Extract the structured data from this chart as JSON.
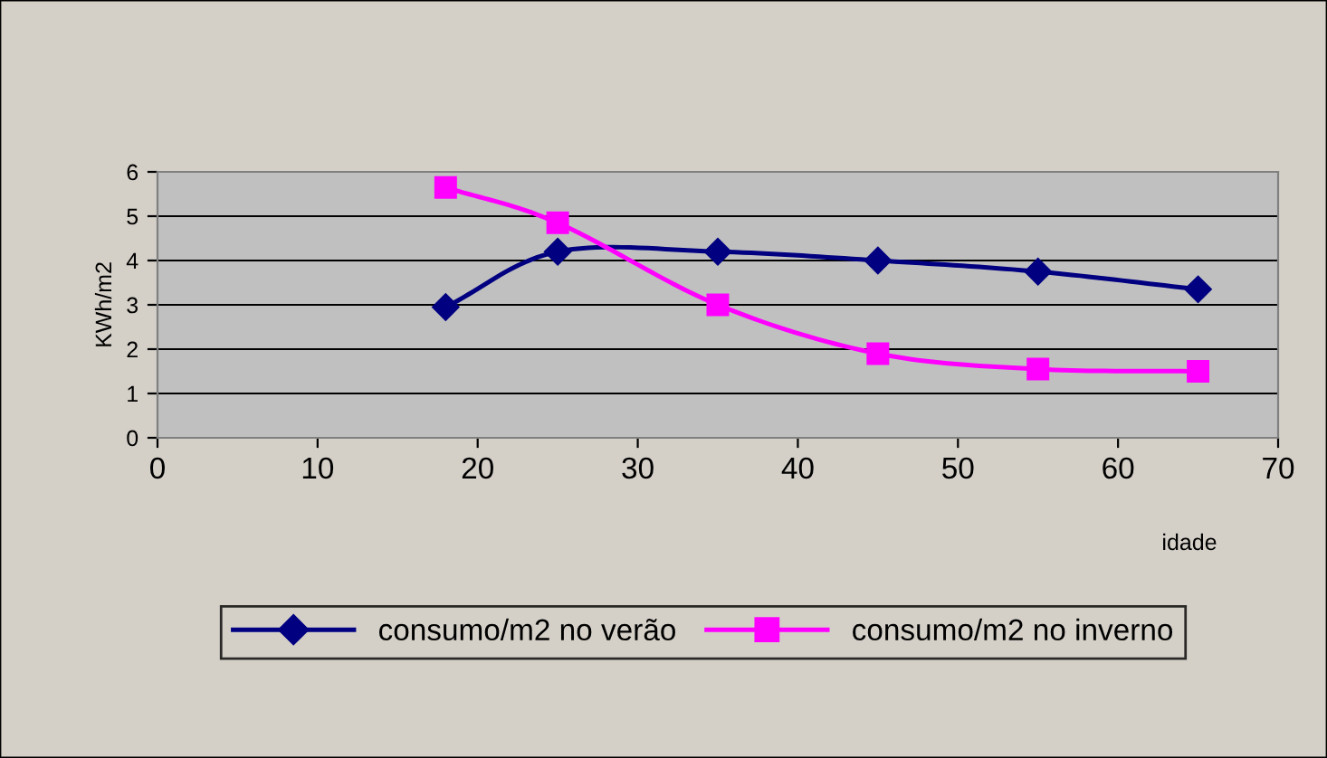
{
  "chart_data": {
    "type": "line",
    "xlabel": "idade",
    "ylabel": "KWh/m2",
    "xlim": [
      0,
      70
    ],
    "xticks": [
      0,
      10,
      20,
      30,
      40,
      50,
      60,
      70
    ],
    "ylim": [
      0,
      6
    ],
    "yticks": [
      0,
      1,
      2,
      3,
      4,
      5,
      6
    ],
    "grid": "y",
    "legend": "bottom",
    "series": [
      {
        "name": "consumo/m2 no verão",
        "color": "#000080",
        "marker": "diamond",
        "x": [
          18,
          25,
          35,
          45,
          55,
          65
        ],
        "values": [
          2.95,
          4.2,
          4.2,
          4.0,
          3.75,
          3.35
        ]
      },
      {
        "name": "consumo/m2 no inverno",
        "color": "#ff00ff",
        "marker": "square",
        "x": [
          18,
          25,
          35,
          45,
          55,
          65
        ],
        "values": [
          5.65,
          4.85,
          3.0,
          1.9,
          1.55,
          1.5
        ]
      }
    ]
  }
}
